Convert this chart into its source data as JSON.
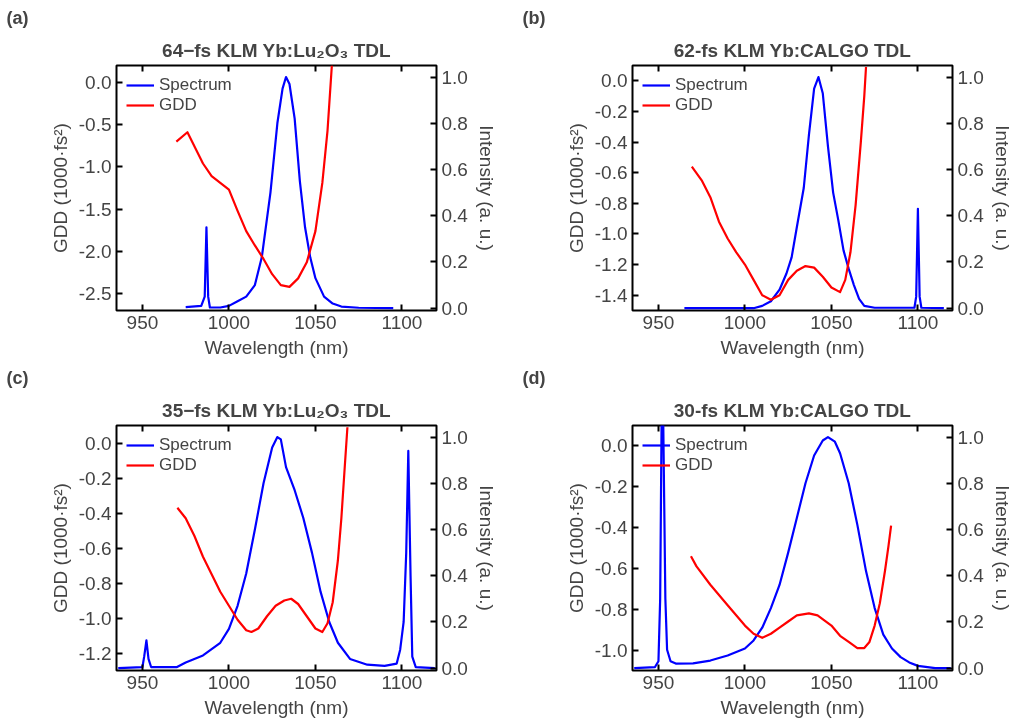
{
  "chart_data": [
    {
      "type": "line",
      "title": "64−fs KLM Yb:Lu₂O₃ TDL",
      "annotations": [
        "(a)"
      ],
      "xlabel": "Wavelength (nm)",
      "ylabel": "GDD (1000·fs²)",
      "y2label": "Intensity (a. u.)",
      "xlim": [
        935,
        1120
      ],
      "xticks": [
        950,
        1000,
        1050,
        1100
      ],
      "ylim": [
        -2.7,
        0.2
      ],
      "yticks": [
        {
          "value": 0,
          "label": "0.0"
        },
        {
          "value": -0.5,
          "label": "-0.5"
        },
        {
          "value": -1.0,
          "label": "-1.0"
        },
        {
          "value": -1.5,
          "label": "-1.5"
        },
        {
          "value": -2.0,
          "label": "-2.0"
        },
        {
          "value": -2.5,
          "label": "-2.5"
        }
      ],
      "y2lim": [
        -0.01,
        1.05
      ],
      "y2ticks": [
        {
          "value": 0,
          "label": "0.0"
        },
        {
          "value": 0.2,
          "label": "0.2"
        },
        {
          "value": 0.4,
          "label": "0.4"
        },
        {
          "value": 0.6,
          "label": "0.6"
        },
        {
          "value": 0.8,
          "label": "0.8"
        },
        {
          "value": 1.0,
          "label": "1.0"
        }
      ],
      "grid": false,
      "legend": "top left",
      "line_style": "solid",
      "marker": "none",
      "series": [
        {
          "name": "Spectrum",
          "color": "#0000ff",
          "axis": "y2",
          "x": [
            975,
            984,
            986,
            987,
            988,
            989,
            995,
            1000,
            1005,
            1010,
            1015,
            1019,
            1024,
            1028,
            1031,
            1033,
            1035,
            1038,
            1041,
            1044,
            1047,
            1050,
            1055,
            1060,
            1065,
            1075,
            1095
          ],
          "values": [
            0.005,
            0.01,
            0.05,
            0.35,
            0.05,
            0.003,
            0.003,
            0.01,
            0.03,
            0.05,
            0.1,
            0.22,
            0.5,
            0.8,
            0.95,
            1.0,
            0.97,
            0.82,
            0.55,
            0.35,
            0.22,
            0.13,
            0.05,
            0.02,
            0.007,
            0.002,
            0.0
          ]
        },
        {
          "name": "GDD",
          "color": "#ff0000",
          "x": [
            969.6,
            976,
            985,
            990,
            995,
            1000,
            1005,
            1010,
            1015,
            1020,
            1025,
            1030,
            1035,
            1040,
            1045,
            1050,
            1054,
            1057,
            1059.5
          ],
          "values": [
            -0.7,
            -0.59,
            -0.96,
            -1.11,
            -1.19,
            -1.27,
            -1.52,
            -1.76,
            -1.93,
            -2.09,
            -2.27,
            -2.4,
            -2.42,
            -2.32,
            -2.13,
            -1.76,
            -1.19,
            -0.57,
            0.2
          ]
        }
      ]
    },
    {
      "type": "line",
      "title": "62-fs KLM Yb:CALGO TDL",
      "annotations": [
        "(b)"
      ],
      "xlabel": "Wavelength (nm)",
      "ylabel": "GDD (1000·fs²)",
      "y2label": "Intensity (a. u.)",
      "xlim": [
        935,
        1120
      ],
      "xticks": [
        950,
        1000,
        1050,
        1100
      ],
      "ylim": [
        -1.5,
        0.1
      ],
      "yticks": [
        {
          "value": 0,
          "label": "0.0"
        },
        {
          "value": -0.2,
          "label": "-0.2"
        },
        {
          "value": -0.4,
          "label": "-0.4"
        },
        {
          "value": -0.6,
          "label": "-0.6"
        },
        {
          "value": -0.8,
          "label": "-0.8"
        },
        {
          "value": -1.0,
          "label": "-1.0"
        },
        {
          "value": -1.2,
          "label": "-1.2"
        },
        {
          "value": -1.4,
          "label": "-1.4"
        }
      ],
      "y2lim": [
        -0.01,
        1.05
      ],
      "y2ticks": [
        {
          "value": 0,
          "label": "0.0"
        },
        {
          "value": 0.2,
          "label": "0.2"
        },
        {
          "value": 0.4,
          "label": "0.4"
        },
        {
          "value": 0.6,
          "label": "0.6"
        },
        {
          "value": 0.8,
          "label": "0.8"
        },
        {
          "value": 1.0,
          "label": "1.0"
        }
      ],
      "grid": false,
      "legend": "top left",
      "line_style": "solid",
      "marker": "none",
      "series": [
        {
          "name": "Spectrum",
          "color": "#0000ff",
          "axis": "y2",
          "x": [
            965,
            1005,
            1010,
            1015,
            1020,
            1024,
            1027,
            1030,
            1034,
            1037,
            1040,
            1042.5,
            1045,
            1048,
            1051,
            1054,
            1057,
            1060,
            1063,
            1066,
            1069,
            1075,
            1098,
            1099,
            1100,
            1101,
            1102,
            1115
          ],
          "values": [
            0,
            0,
            0.01,
            0.03,
            0.08,
            0.15,
            0.22,
            0.35,
            0.52,
            0.75,
            0.95,
            1.0,
            0.93,
            0.7,
            0.5,
            0.38,
            0.25,
            0.17,
            0.1,
            0.04,
            0.01,
            0.002,
            0.002,
            0.05,
            0.43,
            0.05,
            0.002,
            0
          ]
        },
        {
          "name": "GDD",
          "color": "#ff0000",
          "x": [
            969.3,
            975,
            980,
            985,
            990,
            995,
            1000,
            1005,
            1010,
            1015,
            1020,
            1025,
            1030,
            1035,
            1040,
            1045,
            1050,
            1055,
            1058,
            1061,
            1064,
            1067,
            1069,
            1070
          ],
          "values": [
            -0.56,
            -0.65,
            -0.76,
            -0.92,
            -1.03,
            -1.12,
            -1.2,
            -1.3,
            -1.4,
            -1.43,
            -1.4,
            -1.3,
            -1.24,
            -1.21,
            -1.22,
            -1.28,
            -1.35,
            -1.38,
            -1.3,
            -1.12,
            -0.81,
            -0.4,
            -0.1,
            0.09
          ]
        }
      ]
    },
    {
      "type": "line",
      "title": "35−fs KLM Yb:Lu₂O₃ TDL",
      "annotations": [
        "(c)"
      ],
      "xlabel": "Wavelength (nm)",
      "ylabel": "GDD (1000·fs²)",
      "y2label": "Intensity (a. u.)",
      "xlim": [
        935,
        1120
      ],
      "xticks": [
        950,
        1000,
        1050,
        1100
      ],
      "ylim": [
        -1.3,
        0.1
      ],
      "yticks": [
        {
          "value": 0,
          "label": "0.0"
        },
        {
          "value": -0.2,
          "label": "-0.2"
        },
        {
          "value": -0.4,
          "label": "-0.4"
        },
        {
          "value": -0.6,
          "label": "-0.6"
        },
        {
          "value": -0.8,
          "label": "-0.8"
        },
        {
          "value": -1.0,
          "label": "-1.0"
        },
        {
          "value": -1.2,
          "label": "-1.2"
        }
      ],
      "y2lim": [
        -0.01,
        1.05
      ],
      "y2ticks": [
        {
          "value": 0,
          "label": "0.0"
        },
        {
          "value": 0.2,
          "label": "0.2"
        },
        {
          "value": 0.4,
          "label": "0.4"
        },
        {
          "value": 0.6,
          "label": "0.6"
        },
        {
          "value": 0.8,
          "label": "0.8"
        },
        {
          "value": 1.0,
          "label": "1.0"
        }
      ],
      "grid": false,
      "legend": "top left",
      "line_style": "solid",
      "marker": "none",
      "series": [
        {
          "name": "Spectrum",
          "color": "#0000ff",
          "axis": "y2",
          "x": [
            936,
            950,
            951,
            952.3,
            953.5,
            955,
            970,
            975,
            985,
            995,
            1000,
            1005,
            1010,
            1015,
            1020,
            1025,
            1028,
            1030,
            1033,
            1038,
            1043,
            1048,
            1053,
            1058,
            1063,
            1070,
            1080,
            1090,
            1097,
            1099,
            1101,
            1102.5,
            1103.7,
            1105,
            1106,
            1108,
            1119
          ],
          "values": [
            0,
            0.005,
            0.05,
            0.12,
            0.04,
            0.005,
            0.005,
            0.025,
            0.055,
            0.11,
            0.17,
            0.27,
            0.41,
            0.6,
            0.8,
            0.955,
            1.0,
            0.99,
            0.87,
            0.77,
            0.65,
            0.5,
            0.33,
            0.2,
            0.11,
            0.04,
            0.015,
            0.01,
            0.02,
            0.08,
            0.2,
            0.5,
            0.94,
            0.4,
            0.05,
            0.005,
            0
          ]
        },
        {
          "name": "GDD",
          "color": "#ff0000",
          "x": [
            970.2,
            975,
            980,
            985,
            990,
            995,
            1000,
            1005,
            1010,
            1013,
            1017,
            1022,
            1027,
            1032,
            1036,
            1040,
            1045,
            1050,
            1054,
            1057,
            1060,
            1063,
            1065,
            1067,
            1068.5
          ],
          "values": [
            -0.37,
            -0.43,
            -0.53,
            -0.65,
            -0.75,
            -0.85,
            -0.93,
            -1.01,
            -1.07,
            -1.08,
            -1.06,
            -0.99,
            -0.93,
            -0.9,
            -0.89,
            -0.92,
            -0.99,
            -1.06,
            -1.08,
            -1.03,
            -0.91,
            -0.67,
            -0.43,
            -0.13,
            0.09
          ]
        }
      ]
    },
    {
      "type": "line",
      "title": "30-fs KLM Yb:CALGO TDL",
      "annotations": [
        "(d)"
      ],
      "xlabel": "Wavelength (nm)",
      "ylabel": "GDD (1000·fs²)",
      "y2label": "Intensity (a. u.)",
      "xlim": [
        935,
        1120
      ],
      "xticks": [
        950,
        1000,
        1050,
        1100
      ],
      "ylim": [
        -1.1,
        0.1
      ],
      "yticks": [
        {
          "value": 0,
          "label": "0.0"
        },
        {
          "value": -0.2,
          "label": "-0.2"
        },
        {
          "value": -0.4,
          "label": "-0.4"
        },
        {
          "value": -0.6,
          "label": "-0.6"
        },
        {
          "value": -0.8,
          "label": "-0.8"
        },
        {
          "value": -1.0,
          "label": "-1.0"
        }
      ],
      "y2lim": [
        -0.01,
        1.05
      ],
      "y2ticks": [
        {
          "value": 0,
          "label": "0.0"
        },
        {
          "value": 0.2,
          "label": "0.2"
        },
        {
          "value": 0.4,
          "label": "0.4"
        },
        {
          "value": 0.6,
          "label": "0.6"
        },
        {
          "value": 0.8,
          "label": "0.8"
        },
        {
          "value": 1.0,
          "label": "1.0"
        }
      ],
      "grid": false,
      "legend": "top left",
      "line_style": "solid",
      "marker": "none",
      "series": [
        {
          "name": "Spectrum",
          "color": "#0000ff",
          "axis": "y2",
          "x": [
            936,
            948,
            950,
            951,
            951.8,
            952.8,
            954,
            955,
            957,
            960,
            970,
            980,
            990,
            995,
            1000,
            1005,
            1010,
            1015,
            1020,
            1025,
            1030,
            1035,
            1040,
            1045,
            1048,
            1052,
            1055,
            1060,
            1065,
            1070,
            1075,
            1080,
            1085,
            1090,
            1095,
            1100,
            1110,
            1119
          ],
          "values": [
            0,
            0.005,
            0.03,
            0.3,
            1.05,
            1.05,
            0.3,
            0.08,
            0.03,
            0.02,
            0.021,
            0.033,
            0.055,
            0.07,
            0.085,
            0.12,
            0.175,
            0.26,
            0.36,
            0.5,
            0.65,
            0.8,
            0.92,
            0.985,
            1.0,
            0.98,
            0.93,
            0.8,
            0.62,
            0.42,
            0.26,
            0.145,
            0.085,
            0.048,
            0.025,
            0.01,
            0,
            0
          ]
        },
        {
          "name": "GDD",
          "color": "#ff0000",
          "x": [
            968.8,
            972,
            980,
            990,
            1000,
            1005,
            1010,
            1015,
            1020,
            1025,
            1030,
            1037,
            1042,
            1050,
            1055,
            1060,
            1065,
            1069,
            1072,
            1075,
            1078,
            1081,
            1083,
            1084.5
          ],
          "values": [
            -0.54,
            -0.59,
            -0.68,
            -0.78,
            -0.88,
            -0.92,
            -0.94,
            -0.92,
            -0.89,
            -0.86,
            -0.83,
            -0.82,
            -0.83,
            -0.88,
            -0.93,
            -0.96,
            -0.99,
            -0.99,
            -0.96,
            -0.88,
            -0.77,
            -0.61,
            -0.49,
            -0.39
          ]
        }
      ]
    }
  ]
}
